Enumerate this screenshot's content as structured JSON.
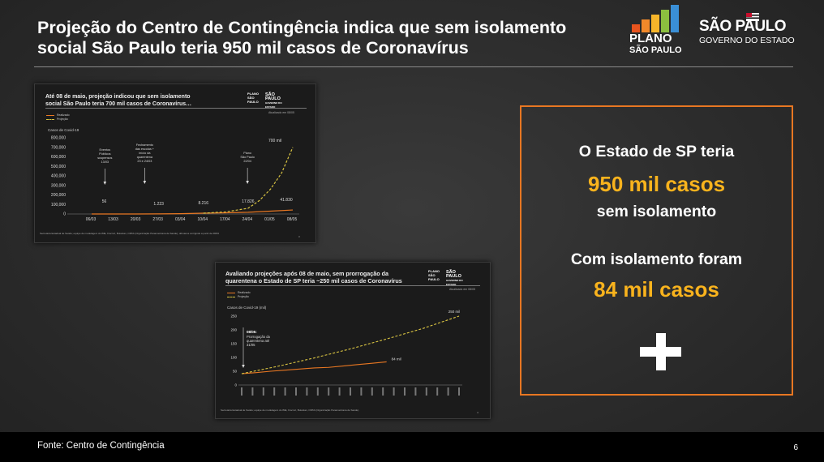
{
  "header": {
    "title_line1": "Projeção do Centro de Contingência indica que sem isolamento",
    "title_line2": "social São Paulo teria 950 mil casos de Coronavírus",
    "logo_plano_line1": "PLANO",
    "logo_plano_line2": "SÃO PAULO",
    "logo_sp_line1": "SÃO PAULO",
    "logo_sp_line2": "GOVERNO DO ESTADO",
    "bar_colors": [
      "#e8541e",
      "#f0892a",
      "#f6b52a",
      "#8cbf3f",
      "#3a8fd6"
    ]
  },
  "slide1": {
    "title_line1": "Até 08 de maio, projeção indicou que sem isolamento",
    "title_line2": "social São Paulo teria 700 mil casos de Coronavírus…",
    "logo1_line1": "PLANO",
    "logo1_line2": "SÃO PAULO",
    "logo2_line1": "SÃO PAULO",
    "logo2_line2": "GOVERNO DO ESTADO",
    "atualizado": "Atualizado em 08/05",
    "legend_realizado": "Realizado",
    "legend_projecao": "Projeção",
    "source": "Secretaria Estadual de Saúde; equipe de modelagem do IME, Fiocruz, Butantan, OPAS (Organização Panamericana de Saúde); dômanos corrigindo a partir de 28/03",
    "page": "3",
    "chart_data": {
      "type": "line",
      "title": "Casos de Covid-19",
      "categories": [
        "06/03",
        "13/03",
        "20/03",
        "27/03",
        "03/04",
        "10/04",
        "17/04",
        "24/04",
        "01/05",
        "08/05"
      ],
      "yticks": [
        "800,000",
        "700,000",
        "600,000",
        "500,000",
        "400,000",
        "300,000",
        "200,000",
        "100,000",
        "0"
      ],
      "ylim": [
        0,
        800000
      ],
      "series": [
        {
          "name": "Realizado",
          "x": [
            0.0,
            1.0,
            2.0,
            3.0,
            4.0,
            5.0,
            6.0,
            7.0,
            8.0,
            9.0
          ],
          "y": [
            0,
            56,
            300,
            1223,
            3500,
            8216,
            13000,
            17826,
            30000,
            41830
          ],
          "color": "#e87722",
          "dashed": false
        },
        {
          "name": "Projeção",
          "x": [
            5.0,
            6.0,
            7.0,
            7.5,
            8.0,
            8.5,
            9.0
          ],
          "y": [
            8216,
            22000,
            60000,
            140000,
            260000,
            430000,
            700000
          ],
          "color": "#d9c442",
          "dashed": true
        }
      ],
      "data_labels": [
        "56",
        "1.223",
        "8.216",
        "17.826",
        "41.830",
        "700 mil"
      ],
      "annotations": [
        {
          "lines": [
            "Eventos",
            "Públicos",
            "suspensos",
            "13/03"
          ]
        },
        {
          "lines": [
            "Fechamento",
            "das escolas +",
            "início da",
            "quarentena",
            "23 e 24/03"
          ]
        },
        {
          "lines": [
            "Plano",
            "São Paulo",
            "22/04"
          ]
        }
      ]
    }
  },
  "slide2": {
    "title_line1": "Avaliando projeções após 08 de maio, sem prorrogação da",
    "title_line2": "quarentena o Estado de SP teria ~250 mil casos de Coronavírus",
    "logo1_line1": "PLANO",
    "logo1_line2": "SÃO PAULO",
    "logo2_line1": "SÃO PAULO",
    "logo2_line2": "GOVERNO DO ESTADO",
    "atualizado": "Atualizado em 08/05",
    "legend_realizado": "Realizado",
    "legend_projecao": "Projeção",
    "source": "Secretaria Estadual de Saúde; equipe de modelagem do IME, Fiocruz, Butantan, OPAS (Organização Panamericana de Saúde).",
    "page": "4",
    "chart_data": {
      "type": "line",
      "title": "Casos de Covid-19 (mil)",
      "yticks": [
        "250",
        "200",
        "150",
        "100",
        "50",
        "0"
      ],
      "ylim": [
        0,
        250
      ],
      "xcount": 21,
      "series": [
        {
          "name": "Realizado",
          "x": [
            0,
            2,
            4,
            6,
            8,
            10,
            12,
            14,
            16,
            18,
            20
          ],
          "y": [
            41,
            45,
            50,
            54,
            58,
            62,
            64,
            69,
            74,
            79,
            84
          ],
          "color": "#e87722",
          "dashed": false
        },
        {
          "name": "Projeção",
          "x": [
            0,
            5,
            10,
            15,
            20,
            25,
            30
          ],
          "y": [
            41,
            68,
            98,
            131,
            167,
            205,
            250
          ],
          "color": "#d9c442",
          "dashed": true
        }
      ],
      "data_labels": [
        "84 mil",
        "250 mil"
      ],
      "annotation_title": "08/05:",
      "annotation_lines": [
        "Prorrogação da",
        "quarentena até",
        "31/05"
      ]
    }
  },
  "summary_box": {
    "line1": "O Estado de SP teria",
    "line2": "950 mil casos",
    "line3": "sem isolamento",
    "line4": "Com isolamento foram",
    "line5": "84 mil casos",
    "accent": "#f9b31d",
    "border": "#e87722"
  },
  "footer": {
    "source": "Fonte: Centro de Contingência",
    "page": "6"
  }
}
